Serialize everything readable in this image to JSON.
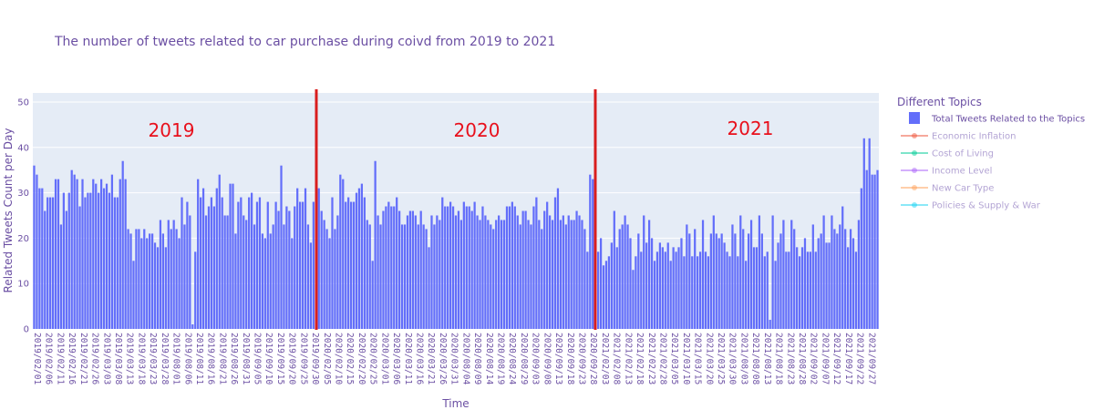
{
  "chart_data": {
    "type": "bar",
    "title": "The number of tweets related to car purchase during coivd from 2019 to 2021",
    "xlabel": "Time",
    "ylabel": "Related Tweets Count per Day",
    "ylim": [
      0,
      52
    ],
    "yticks": [
      0,
      10,
      20,
      30,
      40,
      50
    ],
    "grid": true,
    "legend": {
      "title": "Different Topics",
      "placement": "right",
      "entries": [
        {
          "name": "Total Tweets Related to the Topics",
          "kind": "bar",
          "color": "#636efa",
          "active": true
        },
        {
          "name": "Economic Inflation",
          "kind": "line",
          "color": "#ef553b",
          "active": false
        },
        {
          "name": "Cost of Living",
          "kind": "line",
          "color": "#00cc96",
          "active": false
        },
        {
          "name": "Income Level",
          "kind": "line",
          "color": "#ab63fa",
          "active": false
        },
        {
          "name": "New Car Type",
          "kind": "line",
          "color": "#ffa15a",
          "active": false
        },
        {
          "name": "Policies & Supply & War",
          "kind": "line",
          "color": "#19d3f3",
          "active": false
        }
      ]
    },
    "annotations": [
      {
        "text": "2019",
        "color": "#e8101c"
      },
      {
        "text": "2020",
        "color": "#e8101c"
      },
      {
        "text": "2021",
        "color": "#e8101c"
      }
    ],
    "dividers": {
      "after_index": [
        104,
        209
      ],
      "color": "#d91e1e"
    },
    "x_tick_labels": [
      "2019/02/01",
      "2019/02/06",
      "2019/02/11",
      "2019/02/16",
      "2019/02/21",
      "2019/02/26",
      "2019/03/03",
      "2019/03/08",
      "2019/03/13",
      "2019/03/18",
      "2019/03/23",
      "2019/03/28",
      "2019/08/01",
      "2019/08/06",
      "2019/08/11",
      "2019/08/16",
      "2019/08/21",
      "2019/08/26",
      "2019/08/31",
      "2019/09/05",
      "2019/09/10",
      "2019/09/15",
      "2019/09/20",
      "2019/09/25",
      "2019/09/30",
      "2020/02/05",
      "2020/02/10",
      "2020/02/15",
      "2020/02/20",
      "2020/02/25",
      "2020/03/01",
      "2020/03/06",
      "2020/03/11",
      "2020/03/16",
      "2020/03/21",
      "2020/03/26",
      "2020/03/31",
      "2020/08/04",
      "2020/08/09",
      "2020/08/14",
      "2020/08/19",
      "2020/08/24",
      "2020/08/29",
      "2020/09/03",
      "2020/09/08",
      "2020/09/13",
      "2020/09/18",
      "2020/09/23",
      "2020/09/28",
      "2021/02/03",
      "2021/02/08",
      "2021/02/13",
      "2021/02/18",
      "2021/02/23",
      "2021/02/28",
      "2021/03/05",
      "2021/03/10",
      "2021/03/15",
      "2021/03/20",
      "2021/03/25",
      "2021/03/30",
      "2021/08/03",
      "2021/08/08",
      "2021/08/13",
      "2021/08/18",
      "2021/08/23",
      "2021/08/28",
      "2021/09/02",
      "2021/09/07",
      "2021/09/12",
      "2021/09/17",
      "2021/09/22",
      "2021/09/27"
    ],
    "series": [
      {
        "name": "Total Tweets Related to the Topics",
        "color": "#636efa",
        "values": [
          36,
          34,
          31,
          31,
          26,
          29,
          29,
          29,
          33,
          33,
          23,
          30,
          26,
          30,
          35,
          34,
          33,
          27,
          33,
          29,
          30,
          30,
          33,
          32,
          30,
          33,
          31,
          32,
          30,
          34,
          29,
          29,
          33,
          37,
          33,
          22,
          21,
          15,
          22,
          22,
          20,
          22,
          20,
          21,
          21,
          19,
          18,
          24,
          21,
          18,
          24,
          22,
          24,
          22,
          20,
          29,
          23,
          28,
          25,
          1,
          17,
          33,
          29,
          31,
          25,
          27,
          29,
          27,
          31,
          34,
          29,
          25,
          25,
          32,
          32,
          21,
          28,
          29,
          25,
          24,
          29,
          30,
          23,
          28,
          29,
          21,
          20,
          28,
          21,
          23,
          28,
          26,
          36,
          23,
          27,
          26,
          20,
          27,
          31,
          28,
          28,
          31,
          23,
          19,
          28,
          30,
          31,
          26,
          24,
          22,
          20,
          29,
          22,
          25,
          34,
          33,
          28,
          29,
          28,
          28,
          30,
          31,
          32,
          29,
          24,
          23,
          15,
          37,
          25,
          23,
          26,
          27,
          28,
          27,
          27,
          29,
          26,
          23,
          23,
          25,
          26,
          26,
          25,
          23,
          26,
          23,
          22,
          18,
          25,
          23,
          25,
          24,
          29,
          27,
          27,
          28,
          27,
          25,
          26,
          24,
          28,
          27,
          27,
          26,
          28,
          25,
          24,
          27,
          25,
          24,
          23,
          22,
          24,
          25,
          24,
          24,
          27,
          27,
          28,
          27,
          25,
          23,
          26,
          26,
          24,
          23,
          27,
          29,
          24,
          22,
          26,
          28,
          25,
          24,
          29,
          31,
          24,
          25,
          23,
          25,
          24,
          24,
          26,
          25,
          24,
          22,
          17,
          34,
          33,
          26
        ],
        "note": "values approximated by reading heights; extended below by script pattern"
      }
    ]
  }
}
